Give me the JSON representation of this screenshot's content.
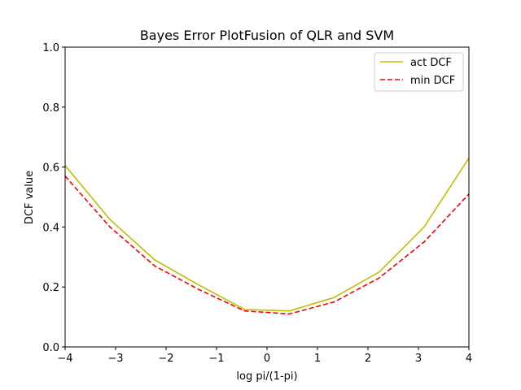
{
  "chart_data": {
    "type": "line",
    "title": "Bayes Error PlotFusion of QLR and SVM",
    "xlabel": "log pi/(1-pi)",
    "ylabel": "DCF value",
    "xlim": [
      -4,
      4
    ],
    "ylim": [
      0,
      1
    ],
    "xticks": [
      -4,
      -3,
      -2,
      -1,
      0,
      1,
      2,
      3,
      4
    ],
    "xtick_labels": [
      "−4",
      "−3",
      "−2",
      "−1",
      "0",
      "1",
      "2",
      "3",
      "4"
    ],
    "yticks": [
      0,
      0.2,
      0.4,
      0.6,
      0.8,
      1.0
    ],
    "ytick_labels": [
      "0.0",
      "0.2",
      "0.4",
      "0.6",
      "0.8",
      "1.0"
    ],
    "grid": false,
    "legend_position": "top-right",
    "x": [
      -4.0,
      -3.111,
      -2.222,
      -1.333,
      -0.444,
      0.444,
      1.333,
      2.222,
      3.111,
      4.0
    ],
    "series": [
      {
        "name": "act DCF",
        "color": "#bfbf00",
        "style": "solid",
        "values": [
          0.605,
          0.425,
          0.29,
          0.205,
          0.125,
          0.12,
          0.165,
          0.25,
          0.4,
          0.63
        ]
      },
      {
        "name": "min DCF",
        "color": "#ff0000",
        "style": "dashed",
        "values": [
          0.57,
          0.4,
          0.27,
          0.19,
          0.12,
          0.11,
          0.15,
          0.23,
          0.35,
          0.51
        ]
      }
    ]
  }
}
